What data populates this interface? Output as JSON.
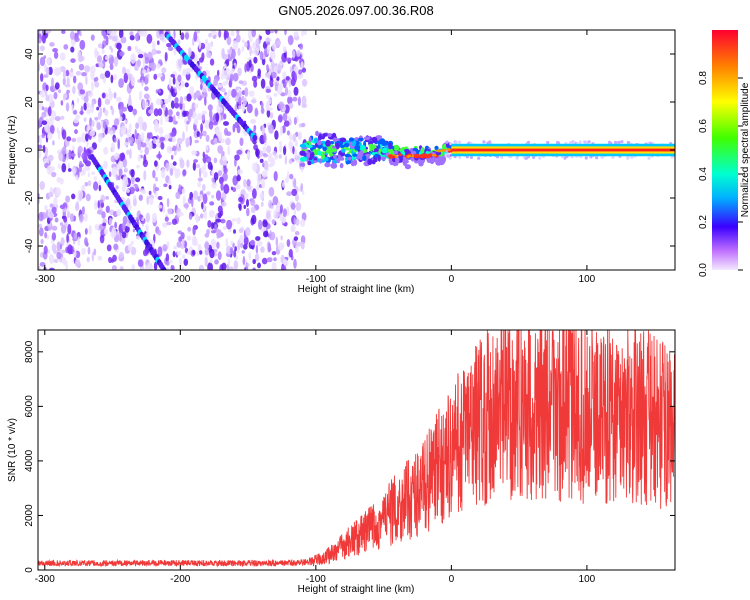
{
  "title": "GN05.2026.097.00.36.R08",
  "colors": {
    "snr_line": "#f03a3a",
    "axis": "#000000",
    "background": "#ffffff"
  },
  "chart_data": [
    {
      "type": "heatmap",
      "title": "GN05.2026.097.00.36.R08",
      "xlabel": "Height of straight line (km)",
      "ylabel": "Frequency (Hz)",
      "xlim": [
        -305,
        165
      ],
      "ylim": [
        -50,
        50
      ],
      "xticks": [
        -300,
        -200,
        -100,
        0,
        100
      ],
      "yticks": [
        -40,
        -20,
        0,
        20,
        40
      ],
      "grid": false,
      "colormap": "rainbow",
      "colorbar": {
        "label": "Normalized spectral amplitude",
        "range": [
          0,
          1
        ],
        "ticks": [
          0.0,
          0.2,
          0.4,
          0.6,
          0.8
        ]
      },
      "features": [
        {
          "name": "aliased-trace-upper",
          "x": [
            -210,
            -145
          ],
          "y": [
            48,
            5
          ]
        },
        {
          "name": "aliased-trace-lower",
          "x": [
            -265,
            -212
          ],
          "y": [
            -3,
            -50
          ]
        },
        {
          "name": "carrier-tone-transition",
          "x": [
            -110,
            0
          ],
          "y": [
            0,
            0
          ]
        },
        {
          "name": "carrier-tone-stable",
          "x": [
            0,
            165
          ],
          "y": [
            0,
            0
          ]
        }
      ]
    },
    {
      "type": "line",
      "xlabel": "Height of straight line (km)",
      "ylabel": "SNR (10 * v/v)",
      "xlim": [
        -305,
        165
      ],
      "ylim": [
        0,
        8800
      ],
      "xticks": [
        -300,
        -200,
        -100,
        0,
        100
      ],
      "yticks": [
        0,
        2000,
        4000,
        6000,
        8000
      ],
      "grid": false,
      "series": [
        {
          "x": [
            -305,
            -280,
            -250,
            -220,
            -200,
            -180,
            -150,
            -120,
            -105,
            -95,
            -85,
            -75,
            -65,
            -55,
            -45,
            -35,
            -25,
            -15,
            -5,
            5,
            15,
            25,
            35,
            50,
            65,
            80,
            95,
            110,
            125,
            140,
            150,
            160,
            165
          ],
          "values": [
            250,
            250,
            250,
            260,
            260,
            250,
            250,
            250,
            300,
            450,
            750,
            1100,
            1400,
            1800,
            2200,
            2600,
            3000,
            3600,
            4200,
            4900,
            5500,
            6000,
            6300,
            6400,
            6300,
            6200,
            6150,
            6100,
            6050,
            6000,
            5800,
            5500,
            5300
          ]
        }
      ]
    }
  ]
}
